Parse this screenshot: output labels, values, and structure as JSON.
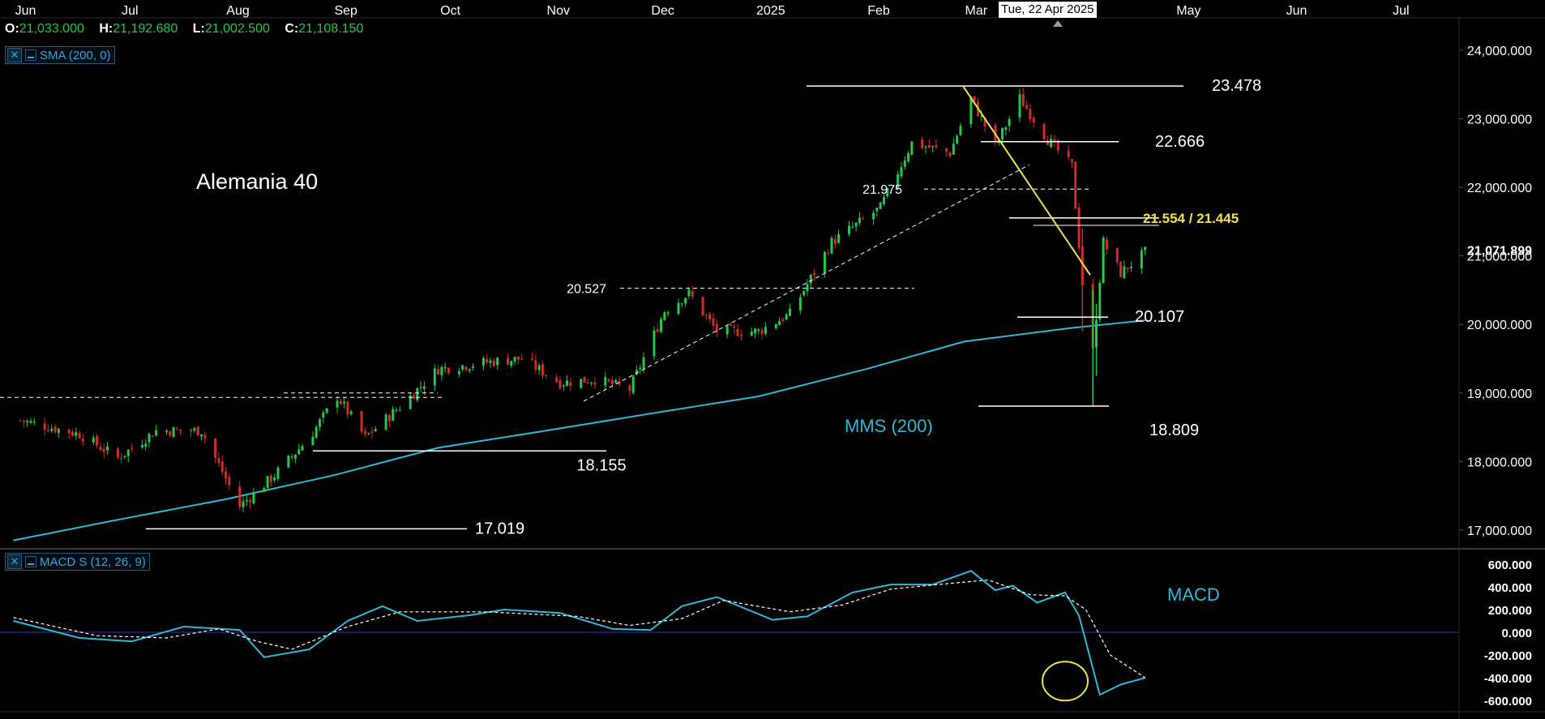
{
  "header": {
    "open_label": "O:",
    "open": "21,033.000",
    "high_label": "H:",
    "high": "21,192.680",
    "low_label": "L:",
    "low": "21,002.500",
    "close_label": "C:",
    "close": "21,108.150"
  },
  "indicators": {
    "sma_label": "SMA (200, 0)",
    "macd_label": "MACD S (12, 26, 9)"
  },
  "crosshair_date": "Tue, 22 Apr 2025",
  "colors": {
    "background": "#000000",
    "bull": "#23c94a",
    "bear": "#d42a2a",
    "sma": "#2fb8d8",
    "trendline": "#f2e24a",
    "text": "#ffffff",
    "zero_line": "#3030c8"
  },
  "chart_data": [
    {
      "type": "candlestick",
      "title": "Alemania 40",
      "x_axis_labels": [
        "Jun",
        "Jul",
        "Aug",
        "Sep",
        "Oct",
        "Nov",
        "Dec",
        "2025",
        "Feb",
        "Mar",
        "Apr",
        "May",
        "Jun",
        "Jul"
      ],
      "y_axis_ticks": [
        "24,000.000",
        "23,000.000",
        "22,000.000",
        "21,000.000",
        "20,000.000",
        "19,000.000",
        "18,000.000",
        "17,000.000"
      ],
      "y_range": [
        16800,
        24250
      ],
      "last_price_label": "21,071.899",
      "close_path": [
        [
          "2024-06-03",
          18600
        ],
        [
          "2024-06-20",
          18400
        ],
        [
          "2024-07-01",
          18050
        ],
        [
          "2024-07-12",
          18450
        ],
        [
          "2024-07-25",
          18450
        ],
        [
          "2024-08-05",
          17350
        ],
        [
          "2024-08-15",
          17800
        ],
        [
          "2024-08-25",
          18350
        ],
        [
          "2024-09-02",
          18950
        ],
        [
          "2024-09-10",
          18350
        ],
        [
          "2024-09-20",
          18800
        ],
        [
          "2024-10-01",
          19350
        ],
        [
          "2024-10-15",
          19450
        ],
        [
          "2024-10-25",
          19500
        ],
        [
          "2024-11-05",
          19150
        ],
        [
          "2024-11-15",
          19200
        ],
        [
          "2024-11-25",
          19050
        ],
        [
          "2024-12-05",
          20200
        ],
        [
          "2024-12-12",
          20450
        ],
        [
          "2024-12-20",
          19900
        ],
        [
          "2025-01-01",
          19900
        ],
        [
          "2025-01-10",
          20150
        ],
        [
          "2025-01-22",
          21200
        ],
        [
          "2025-02-05",
          21700
        ],
        [
          "2025-02-14",
          22650
        ],
        [
          "2025-02-25",
          22500
        ],
        [
          "2025-03-03",
          23300
        ],
        [
          "2025-03-10",
          22600
        ],
        [
          "2025-03-17",
          23300
        ],
        [
          "2025-03-25",
          22700
        ],
        [
          "2025-04-01",
          22300
        ],
        [
          "2025-04-04",
          20600
        ],
        [
          "2025-04-07",
          19600
        ],
        [
          "2025-04-10",
          21200
        ],
        [
          "2025-04-15",
          20750
        ],
        [
          "2025-04-22",
          21050
        ]
      ],
      "sma_200_path": [
        [
          "2024-06-01",
          16850
        ],
        [
          "2024-07-01",
          17150
        ],
        [
          "2024-08-01",
          17450
        ],
        [
          "2024-09-01",
          17800
        ],
        [
          "2024-10-01",
          18200
        ],
        [
          "2024-11-01",
          18450
        ],
        [
          "2024-12-01",
          18700
        ],
        [
          "2025-01-01",
          18950
        ],
        [
          "2025-02-01",
          19350
        ],
        [
          "2025-03-01",
          19750
        ],
        [
          "2025-04-01",
          19950
        ],
        [
          "2025-04-22",
          20060
        ]
      ],
      "levels": [
        {
          "label": "23.478",
          "value": 23478,
          "style": "solid"
        },
        {
          "label": "22.666",
          "value": 22666,
          "style": "solid"
        },
        {
          "label": "21.975",
          "value": 21975,
          "style": "dashed"
        },
        {
          "label": "21.554 / 21.445",
          "value": 21554,
          "value2": 21445,
          "style": "solid",
          "color": "yellow"
        },
        {
          "label": "20.527",
          "value": 20527,
          "style": "dashed"
        },
        {
          "label": "20.107",
          "value": 20107,
          "style": "solid"
        },
        {
          "label": "18.809",
          "value": 18809,
          "style": "solid"
        },
        {
          "label": "18.155",
          "value": 18155,
          "style": "solid"
        },
        {
          "label": "17.019",
          "value": 17019,
          "style": "solid"
        }
      ],
      "annotations": [
        "MMS (200)"
      ]
    },
    {
      "type": "line",
      "title": "MACD",
      "y_axis_ticks": [
        "600.000",
        "400.000",
        "200.000",
        "0.000",
        "-200.000",
        "-400.000",
        "-600.000"
      ],
      "y_range": [
        -700,
        650
      ],
      "series": [
        {
          "values": [
            [
              "2024-06-01",
              100
            ],
            [
              "2024-06-20",
              -50
            ],
            [
              "2024-07-05",
              -80
            ],
            [
              "2024-07-20",
              50
            ],
            [
              "2024-08-05",
              20
            ],
            [
              "2024-08-12",
              -220
            ],
            [
              "2024-08-25",
              -150
            ],
            [
              "2024-09-05",
              100
            ],
            [
              "2024-09-15",
              230
            ],
            [
              "2024-09-25",
              100
            ],
            [
              "2024-10-10",
              150
            ],
            [
              "2024-10-20",
              200
            ],
            [
              "2024-11-05",
              170
            ],
            [
              "2024-11-20",
              30
            ],
            [
              "2024-12-01",
              20
            ],
            [
              "2024-12-10",
              230
            ],
            [
              "2024-12-20",
              310
            ],
            [
              "2025-01-05",
              110
            ],
            [
              "2025-01-15",
              140
            ],
            [
              "2025-01-28",
              350
            ],
            [
              "2025-02-08",
              420
            ],
            [
              "2025-02-20",
              420
            ],
            [
              "2025-03-03",
              540
            ],
            [
              "2025-03-10",
              370
            ],
            [
              "2025-03-15",
              410
            ],
            [
              "2025-03-22",
              260
            ],
            [
              "2025-03-30",
              350
            ],
            [
              "2025-04-03",
              150
            ],
            [
              "2025-04-09",
              -550
            ],
            [
              "2025-04-15",
              -460
            ],
            [
              "2025-04-22",
              -400
            ]
          ]
        },
        {
          "style": "dashed",
          "values": [
            [
              "2024-06-01",
              130
            ],
            [
              "2024-06-25",
              -30
            ],
            [
              "2024-07-15",
              -50
            ],
            [
              "2024-07-30",
              30
            ],
            [
              "2024-08-10",
              -80
            ],
            [
              "2024-08-20",
              -150
            ],
            [
              "2024-09-05",
              50
            ],
            [
              "2024-09-20",
              180
            ],
            [
              "2024-10-15",
              180
            ],
            [
              "2024-11-10",
              140
            ],
            [
              "2024-11-25",
              60
            ],
            [
              "2024-12-10",
              120
            ],
            [
              "2024-12-22",
              280
            ],
            [
              "2025-01-10",
              180
            ],
            [
              "2025-01-25",
              240
            ],
            [
              "2025-02-08",
              380
            ],
            [
              "2025-02-25",
              430
            ],
            [
              "2025-03-08",
              460
            ],
            [
              "2025-03-20",
              330
            ],
            [
              "2025-03-30",
              320
            ],
            [
              "2025-04-05",
              200
            ],
            [
              "2025-04-12",
              -200
            ],
            [
              "2025-04-22",
              -400
            ]
          ]
        }
      ]
    }
  ]
}
